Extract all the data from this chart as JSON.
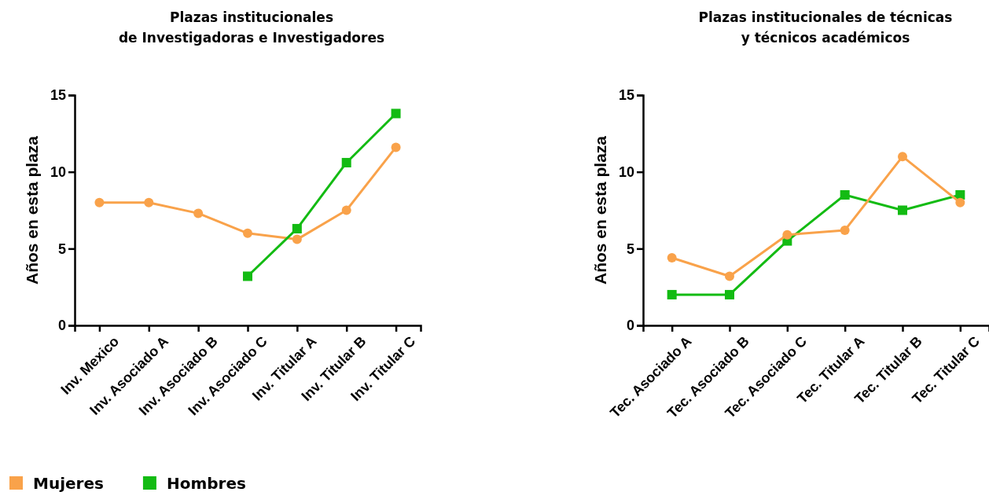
{
  "chart_data": [
    {
      "type": "line",
      "title": "Plazas institucionales\nde Investigadoras e Investigadores",
      "ylabel": "Años en esta plaza",
      "categories": [
        "Inv. Mexico",
        "Inv. Asociado A",
        "Inv. Asociado B",
        "Inv. Asociado C",
        "Inv. Titular A",
        "Inv. Titular B",
        "Inv. Titular C"
      ],
      "ylim": [
        0,
        15
      ],
      "yticks": [
        0,
        5,
        10,
        15
      ],
      "grid": false,
      "legend": "bottom left",
      "series": [
        {
          "name": "Mujeres",
          "color": "#f9a24a",
          "marker": "circle",
          "values": [
            8,
            8,
            7.3,
            6,
            5.6,
            7.5,
            11.6
          ]
        },
        {
          "name": "Hombres",
          "color": "#13bb13",
          "marker": "square",
          "values": [
            null,
            null,
            null,
            3.2,
            6.3,
            10.6,
            13.8
          ]
        }
      ]
    },
    {
      "type": "line",
      "title": "Plazas institucionales de técnicas\ny técnicos académicos",
      "ylabel": "Años en esta plaza",
      "categories": [
        "Tec. Asociado A",
        "Tec. Asociado B",
        "Tec. Asociado C",
        "Tec. Titular A",
        "Tec. Titular B",
        "Tec. Titular C"
      ],
      "ylim": [
        0,
        15
      ],
      "yticks": [
        0,
        5,
        10,
        15
      ],
      "grid": false,
      "legend": false,
      "series": [
        {
          "color": "#13bb13",
          "marker": "square",
          "values": [
            2,
            2,
            5.5,
            8.5,
            7.5,
            8.5
          ]
        },
        {
          "color": "#f9a24a",
          "marker": "circle",
          "values": [
            4.4,
            3.2,
            5.9,
            6.2,
            11,
            8
          ]
        }
      ]
    }
  ]
}
